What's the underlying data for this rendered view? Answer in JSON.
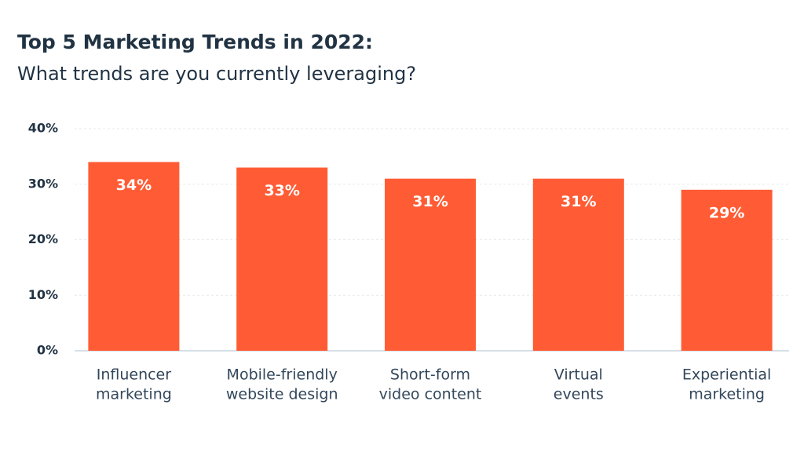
{
  "chart_data": {
    "type": "bar",
    "title": "Top 5 Marketing Trends in 2022:",
    "subtitle": "What trends are you currently leveraging?",
    "categories": [
      [
        "Influencer",
        "marketing"
      ],
      [
        "Mobile-friendly",
        "website design"
      ],
      [
        "Short-form",
        "video content"
      ],
      [
        "Virtual",
        "events"
      ],
      [
        "Experiential",
        "marketing"
      ]
    ],
    "values": [
      34,
      33,
      31,
      31,
      29
    ],
    "value_labels": [
      "34%",
      "33%",
      "31%",
      "31%",
      "29%"
    ],
    "color": "#ff5c35",
    "ylim": [
      0,
      40
    ],
    "yticks": [
      {
        "value": 0,
        "label": "0%"
      },
      {
        "value": 10,
        "label": "10%"
      },
      {
        "value": 20,
        "label": "20%"
      },
      {
        "value": 30,
        "label": "30%"
      },
      {
        "value": 40,
        "label": "40%"
      }
    ],
    "grid": true
  }
}
